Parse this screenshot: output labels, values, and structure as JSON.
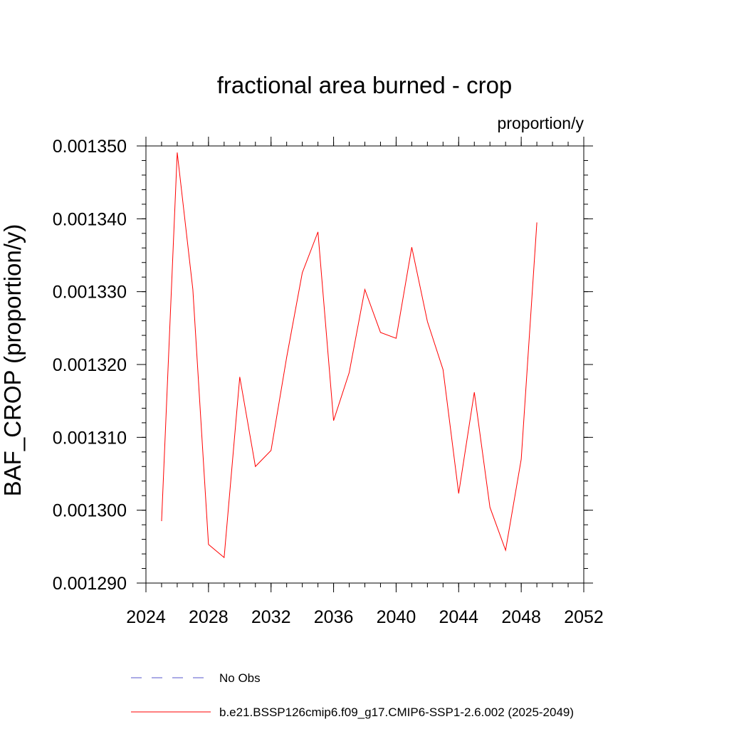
{
  "chart_data": {
    "type": "line",
    "title": "fractional area burned - crop",
    "units": "proportion/y",
    "ylabel": "BAF_CROP  (proportion/y)",
    "xlabel": "",
    "xlim": [
      2024,
      2052
    ],
    "ylim": [
      0.00129,
      0.00135
    ],
    "xticks": [
      2024,
      2028,
      2032,
      2036,
      2040,
      2044,
      2048,
      2052
    ],
    "x_minor_step": 1,
    "yticks": [
      0.00129,
      0.0013,
      0.00131,
      0.00132,
      0.00133,
      0.00134,
      0.00135
    ],
    "ytick_labels": [
      "0.001290",
      "0.001300",
      "0.001310",
      "0.001320",
      "0.001330",
      "0.001340",
      "0.001350"
    ],
    "y_minor_step": 2e-06,
    "grid": false,
    "legend_position": "bottom",
    "series": [
      {
        "name": "No Obs",
        "color": "#5555cc",
        "style": "dashed",
        "x": [],
        "y": []
      },
      {
        "name": "b.e21.BSSP126cmip6.f09_g17.CMIP6-SSP1-2.6.002 (2025-2049)",
        "color": "#ff0000",
        "style": "solid",
        "x": [
          2025,
          2026,
          2027,
          2028,
          2029,
          2030,
          2031,
          2032,
          2033,
          2034,
          2035,
          2036,
          2037,
          2038,
          2039,
          2040,
          2041,
          2042,
          2043,
          2044,
          2045,
          2046,
          2047,
          2048,
          2049
        ],
        "y": [
          0.0012985,
          0.0013491,
          0.0013303,
          0.0012953,
          0.0012935,
          0.0013183,
          0.001306,
          0.0013082,
          0.001321,
          0.0013326,
          0.0013382,
          0.0013123,
          0.0013189,
          0.0013303,
          0.0013244,
          0.0013236,
          0.0013361,
          0.0013259,
          0.0013193,
          0.0013023,
          0.0013162,
          0.0013004,
          0.0012945,
          0.001307,
          0.0013395
        ]
      }
    ]
  }
}
